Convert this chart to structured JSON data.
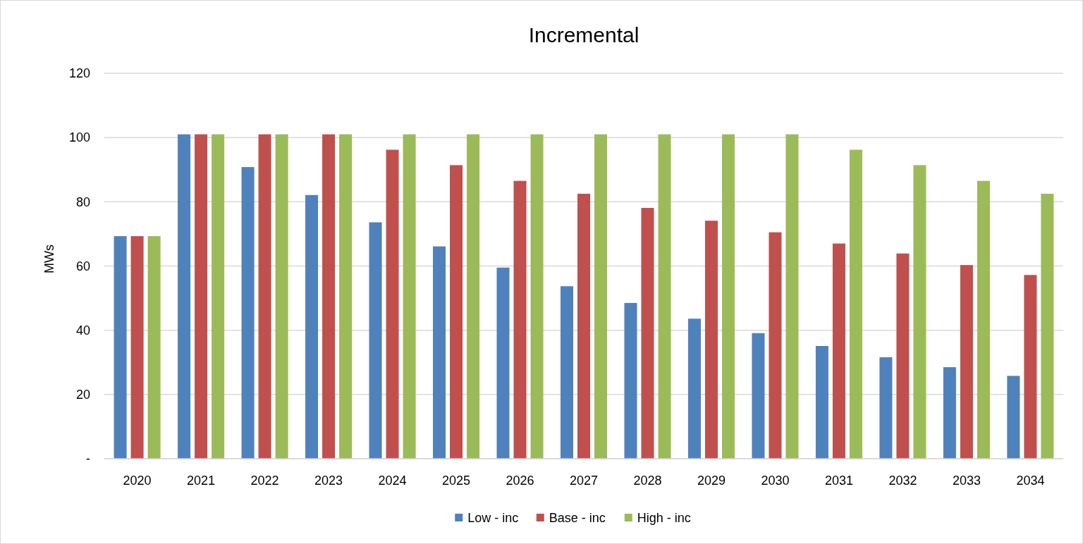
{
  "chart_data": {
    "type": "bar",
    "title": "Incremental",
    "ylabel": "MWs",
    "categories": [
      "2020",
      "2021",
      "2022",
      "2023",
      "2024",
      "2025",
      "2026",
      "2027",
      "2028",
      "2029",
      "2030",
      "2031",
      "2032",
      "2033",
      "2034"
    ],
    "series": [
      {
        "name": "Low - inc",
        "color": "#4f81bd",
        "values": [
          69.3,
          101,
          90.8,
          82.1,
          73.6,
          66.1,
          59.5,
          53.7,
          48.5,
          43.6,
          39.1,
          35.1,
          31.6,
          28.5,
          25.8
        ]
      },
      {
        "name": "Base - inc",
        "color": "#c0504d",
        "values": [
          69.3,
          101,
          101,
          101,
          96.2,
          91.4,
          86.5,
          82.5,
          78.1,
          74.1,
          70.5,
          67.0,
          63.9,
          60.3,
          57.2
        ]
      },
      {
        "name": "High - inc",
        "color": "#9bbb59",
        "values": [
          69.3,
          101,
          101,
          101,
          101,
          101,
          101,
          101,
          101,
          101,
          101,
          96.2,
          91.4,
          86.5,
          82.5
        ]
      }
    ],
    "ylim": [
      0,
      120
    ],
    "yticks": [
      {
        "value": 0,
        "label": "-"
      },
      20,
      40,
      60,
      80,
      100,
      120
    ],
    "grid": "y",
    "legend": "bottom"
  }
}
